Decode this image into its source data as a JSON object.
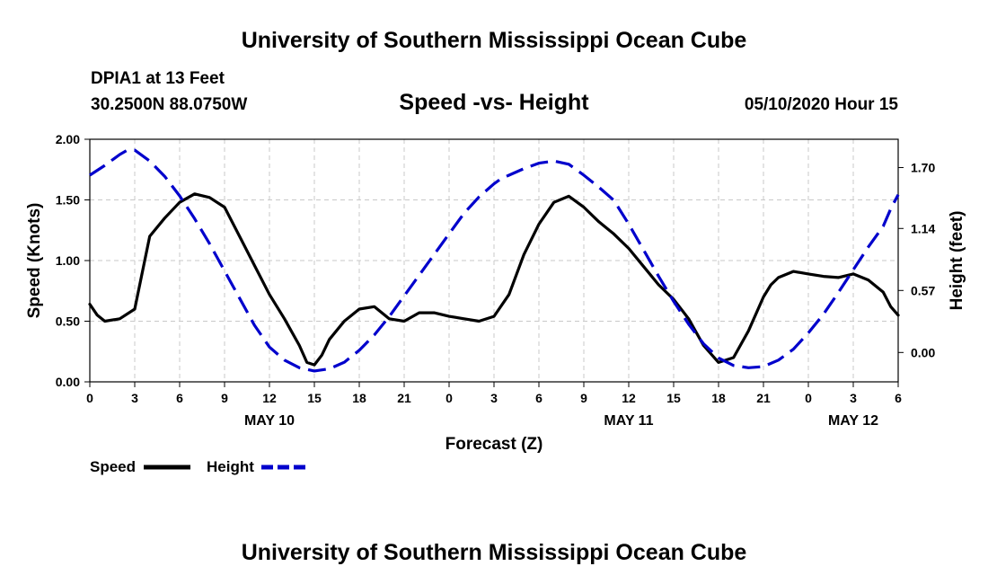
{
  "header": {
    "title": "University of Southern Mississippi Ocean Cube",
    "station": "DPIA1 at 13 Feet",
    "coords": "30.2500N 88.0750W",
    "subtitle": "Speed -vs- Height",
    "date": "05/10/2020 Hour 15"
  },
  "footer": {
    "title": "University of Southern Mississippi Ocean Cube"
  },
  "chart_data": {
    "type": "line",
    "title": "Speed -vs- Height",
    "xlabel": "Forecast (Z)",
    "ylabel_left": "Speed (Knots)",
    "ylabel_right": "Height (feet)",
    "x_unit": "hours from 2020-05-10 00Z",
    "xlim": [
      0,
      54
    ],
    "ylim_left": [
      0,
      2
    ],
    "ylim_right": [
      -0.27,
      1.96
    ],
    "grid": true,
    "x_tick_values": [
      0,
      3,
      6,
      9,
      12,
      15,
      18,
      21,
      24,
      27,
      30,
      33,
      36,
      39,
      42,
      45,
      48,
      51,
      54
    ],
    "x_tick_labels": [
      "0",
      "3",
      "6",
      "9",
      "12",
      "15",
      "18",
      "21",
      "0",
      "3",
      "6",
      "9",
      "12",
      "15",
      "18",
      "21",
      "0",
      "3",
      "6"
    ],
    "day_labels": [
      {
        "x": 12,
        "label": "MAY 10"
      },
      {
        "x": 36,
        "label": "MAY 11"
      },
      {
        "x": 51,
        "label": "MAY 12"
      }
    ],
    "y_left_ticks": [
      "0.00",
      "0.50",
      "1.00",
      "1.50",
      "2.00"
    ],
    "y_left_values": [
      0,
      0.5,
      1.0,
      1.5,
      2.0
    ],
    "y_right_ticks": [
      "0.00",
      "0.57",
      "1.14",
      "1.70"
    ],
    "y_right_values": [
      0,
      0.57,
      1.14,
      1.7
    ],
    "legend": {
      "placement": "bottom-left",
      "entries": [
        "Speed",
        "Height"
      ]
    },
    "series": [
      {
        "name": "Speed",
        "axis": "left",
        "color": "#000000",
        "style": "solid",
        "x": [
          0,
          0.5,
          1,
          2,
          3,
          4,
          5,
          6,
          7,
          8,
          9,
          10,
          11,
          12,
          13,
          14,
          14.5,
          15,
          15.5,
          16,
          17,
          18,
          19,
          20,
          21,
          22,
          23,
          24,
          25,
          26,
          27,
          28,
          29,
          30,
          31,
          32,
          33,
          34,
          35,
          36,
          37,
          38,
          39,
          40,
          41,
          42,
          43,
          44,
          45,
          45.5,
          46,
          47,
          48,
          49,
          50,
          51,
          52,
          53,
          53.5,
          54
        ],
        "values": [
          0.64,
          0.55,
          0.5,
          0.52,
          0.6,
          1.2,
          1.35,
          1.48,
          1.55,
          1.52,
          1.44,
          1.2,
          0.96,
          0.72,
          0.52,
          0.3,
          0.16,
          0.14,
          0.22,
          0.35,
          0.5,
          0.6,
          0.62,
          0.52,
          0.5,
          0.57,
          0.57,
          0.54,
          0.52,
          0.5,
          0.54,
          0.72,
          1.05,
          1.3,
          1.48,
          1.53,
          1.44,
          1.32,
          1.22,
          1.1,
          0.95,
          0.8,
          0.68,
          0.52,
          0.3,
          0.16,
          0.2,
          0.42,
          0.7,
          0.8,
          0.86,
          0.91,
          0.89,
          0.87,
          0.86,
          0.89,
          0.84,
          0.74,
          0.62,
          0.55
        ]
      },
      {
        "name": "Height",
        "axis": "right",
        "color": "#0000cc",
        "style": "dashed",
        "x": [
          0,
          1,
          2,
          2.5,
          3,
          4,
          5,
          6,
          7,
          8,
          9,
          10,
          11,
          12,
          13,
          14,
          15,
          16,
          17,
          18,
          19,
          20,
          21,
          22,
          23,
          24,
          25,
          26,
          27,
          27.5,
          28,
          29,
          30,
          31,
          32,
          33,
          34,
          35,
          36,
          37,
          38,
          39,
          40,
          41,
          42,
          43,
          44,
          45,
          46,
          47,
          48,
          49,
          50,
          51,
          52,
          53,
          53.5,
          54
        ],
        "values": [
          1.63,
          1.72,
          1.82,
          1.86,
          1.86,
          1.76,
          1.62,
          1.44,
          1.23,
          1.0,
          0.75,
          0.5,
          0.25,
          0.05,
          -0.07,
          -0.14,
          -0.17,
          -0.15,
          -0.09,
          0.02,
          0.16,
          0.33,
          0.52,
          0.71,
          0.9,
          1.09,
          1.28,
          1.43,
          1.55,
          1.6,
          1.63,
          1.69,
          1.74,
          1.76,
          1.73,
          1.63,
          1.52,
          1.4,
          1.18,
          0.94,
          0.7,
          0.47,
          0.26,
          0.08,
          -0.05,
          -0.12,
          -0.14,
          -0.13,
          -0.07,
          0.03,
          0.18,
          0.35,
          0.55,
          0.76,
          0.97,
          1.16,
          1.32,
          1.45
        ]
      }
    ]
  }
}
